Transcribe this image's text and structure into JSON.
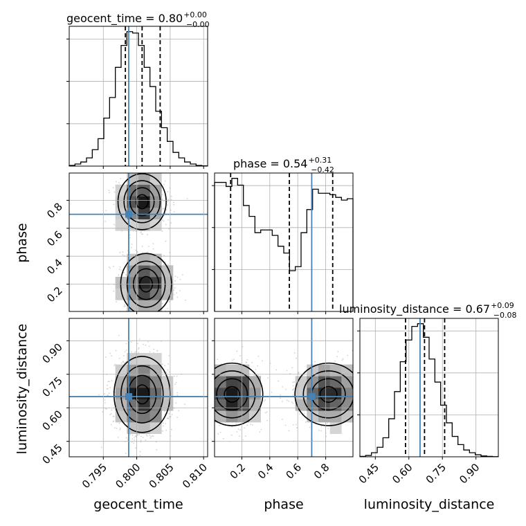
{
  "chart_data": {
    "type": "corner",
    "parameters": [
      "geocent_time",
      "phase",
      "luminosity_distance"
    ],
    "truths": {
      "geocent_time": 0.7988,
      "phase": 0.7,
      "luminosity_distance": 0.65
    },
    "titles": [
      {
        "param": "geocent_time",
        "text": "geocent_time = 0.80",
        "plus": "+0.00",
        "minus": "−0.00"
      },
      {
        "param": "phase",
        "text": "phase = 0.54",
        "plus": "+0.31",
        "minus": "−0.42"
      },
      {
        "param": "luminosity_distance",
        "text": "luminosity_distance = 0.67",
        "plus": "+0.09",
        "minus": "−0.08"
      }
    ],
    "axis_labels": {
      "x": [
        "geocent_time",
        "phase",
        "luminosity_distance"
      ],
      "y": [
        "phase",
        "luminosity_distance"
      ]
    },
    "ranges": {
      "geocent_time": [
        0.7899,
        0.8106
      ],
      "phase": [
        0.005,
        0.995
      ],
      "luminosity_distance": [
        0.381,
        1.0
      ]
    },
    "ticks": {
      "geocent_time": {
        "values": [
          0.795,
          0.8,
          0.805,
          0.81
        ],
        "labels": [
          "0.795",
          "0.800",
          "0.805",
          "0.810"
        ]
      },
      "phase": {
        "values": [
          0.2,
          0.4,
          0.6,
          0.8
        ],
        "labels": [
          "0.2",
          "0.4",
          "0.6",
          "0.8"
        ]
      },
      "luminosity_distance": {
        "values": [
          0.45,
          0.6,
          0.75,
          0.9
        ],
        "labels": [
          "0.45",
          "0.60",
          "0.75",
          "0.90"
        ]
      }
    },
    "quantiles": {
      "geocent_time": [
        0.7983,
        0.8008,
        0.8035
      ],
      "phase": [
        0.12,
        0.54,
        0.85
      ],
      "luminosity_distance": [
        0.585,
        0.67,
        0.76
      ]
    },
    "histograms": {
      "geocent_time": [
        0.5,
        1.5,
        3,
        6,
        12,
        20,
        35,
        50,
        72,
        88,
        98,
        97,
        88,
        72,
        58,
        40,
        28,
        18,
        10,
        6,
        3,
        1.5,
        0.5,
        0.2
      ],
      "phase": [
        0.95,
        0.95,
        0.92,
        0.98,
        0.93,
        0.78,
        0.7,
        0.58,
        0.6,
        0.6,
        0.56,
        0.48,
        0.43,
        0.3,
        0.33,
        0.58,
        0.75,
        0.9,
        0.87,
        0.87,
        0.86,
        0.84,
        0.82,
        0.83
      ],
      "luminosity_distance": [
        0.3,
        1,
        3,
        7,
        14,
        28,
        48,
        70,
        86,
        96,
        98,
        88,
        72,
        55,
        38,
        25,
        15,
        9,
        5,
        3,
        1.5,
        0.6,
        0.3,
        0.1
      ]
    },
    "grid": true
  }
}
